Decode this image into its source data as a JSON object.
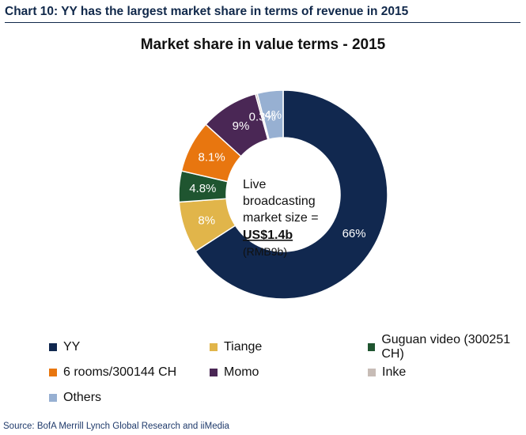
{
  "exhibit_title": "Chart 10: YY has the largest market share in terms of revenue in 2015",
  "source": "Source: BofA Merrill Lynch Global Research and iiMedia",
  "center_label": {
    "lines": [
      "Live",
      "broadcasting",
      "market size ="
    ],
    "value": "US$1.4b",
    "sub": "(RMB9b)"
  },
  "chart_data": {
    "type": "pie",
    "variant": "donut",
    "title": "Market share in value terms - 2015",
    "categories": [
      "YY",
      "Tiange",
      "Guguan video (300251 CH)",
      "6 rooms/300144 CH",
      "Momo",
      "Inke",
      "Others"
    ],
    "values": [
      66,
      8,
      4.8,
      8.1,
      9,
      0.3,
      4
    ],
    "data_labels": [
      "66%",
      "8%",
      "4.8%",
      "8.1%",
      "9%",
      "0.3%",
      "4%"
    ],
    "colors": [
      "#11284f",
      "#e1b54a",
      "#1f5530",
      "#e8760f",
      "#4a2755",
      "#c7bcb6",
      "#97b0d2"
    ],
    "legend_position": "bottom"
  }
}
